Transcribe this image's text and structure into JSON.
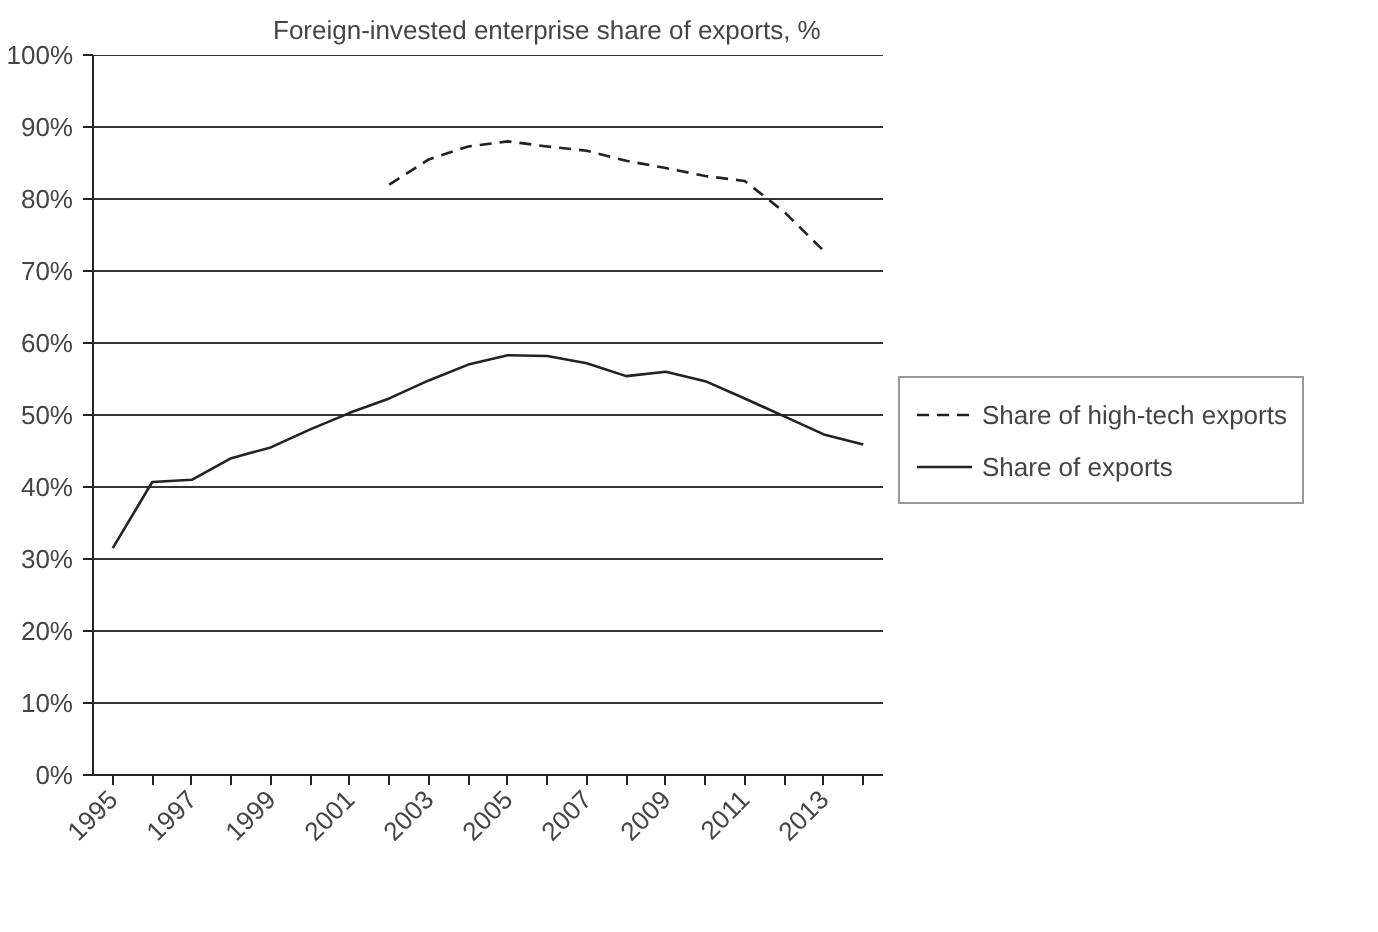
{
  "chart_data": {
    "type": "line",
    "title": "Foreign-invested enterprise share of exports, %",
    "categories": [
      "1995",
      null,
      "1997",
      null,
      "1999",
      null,
      "2001",
      null,
      "2003",
      null,
      "2005",
      null,
      "2007",
      null,
      "2009",
      null,
      "2011",
      null,
      "2013",
      null
    ],
    "series": [
      {
        "name": "Share of high-tech exports",
        "color": "#222222",
        "line_style": "dashed",
        "values": [
          null,
          null,
          null,
          null,
          null,
          null,
          null,
          82,
          85.5,
          87.3,
          88,
          87.3,
          86.7,
          85.3,
          84.3,
          83.2,
          82.5,
          78.2,
          72.8,
          null
        ]
      },
      {
        "name": "Share of exports",
        "color": "#222222",
        "line_style": "solid",
        "values": [
          31.5,
          40.7,
          41,
          44,
          45.5,
          48,
          50.3,
          52.3,
          54.8,
          57,
          58.3,
          58.2,
          57.2,
          55.4,
          56,
          54.7,
          52.3,
          49.8,
          47.3,
          45.9
        ]
      }
    ],
    "ylim": [
      0,
      100
    ],
    "yticks": [
      {
        "value": 0,
        "label": "0%"
      },
      {
        "value": 10,
        "label": "10%"
      },
      {
        "value": 20,
        "label": "20%"
      },
      {
        "value": 30,
        "label": "30%"
      },
      {
        "value": 40,
        "label": "40%"
      },
      {
        "value": 50,
        "label": "50%"
      },
      {
        "value": 60,
        "label": "60%"
      },
      {
        "value": 70,
        "label": "70%"
      },
      {
        "value": 80,
        "label": "80%"
      },
      {
        "value": 90,
        "label": "90%"
      },
      {
        "value": 100,
        "label": "100%"
      }
    ],
    "grid": "y",
    "legend": "right",
    "marker": "none"
  }
}
